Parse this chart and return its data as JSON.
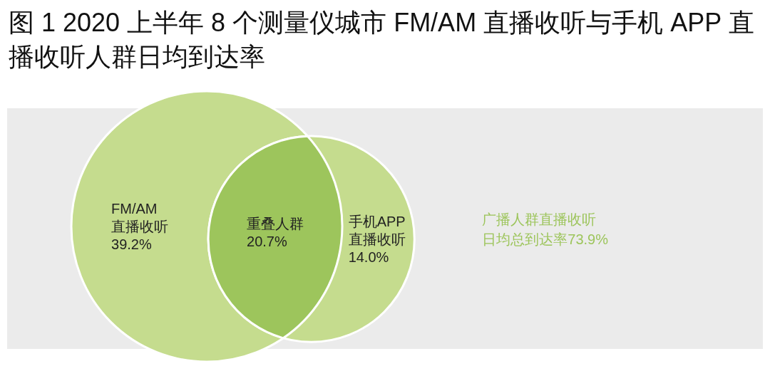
{
  "chart_data": {
    "type": "other",
    "title": "图 1  2020 上半年 8 个测量仪城市 FM/AM 直播收听与手机 APP 直播收听人群日均到达率",
    "categories": [
      "FM/AM直播收听",
      "重叠人群",
      "手机APP直播收听"
    ],
    "values": [
      39.2,
      20.7,
      14.0
    ],
    "value_labels": [
      "39.2%",
      "20.7%",
      "14.0%"
    ],
    "colors": [
      "#c5dc8e",
      "#9dc55c",
      "#c5dc8e"
    ],
    "annotations": [
      "广播人群直播收听日均总到达率73.9%"
    ]
  }
}
